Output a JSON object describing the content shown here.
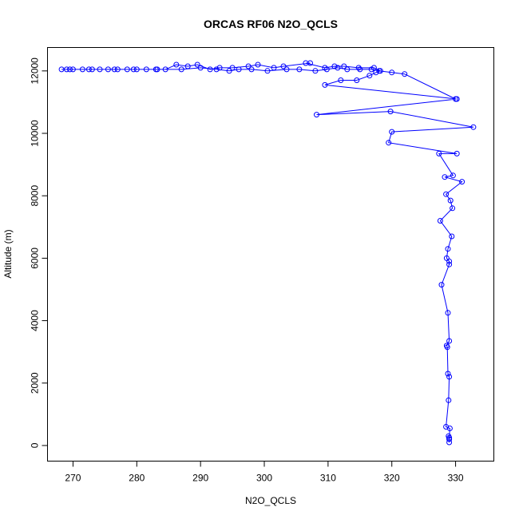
{
  "chart_data": {
    "type": "scatter",
    "title": "ORCAS RF06 N2O_QCLS",
    "xlabel": "N2O_QCLS",
    "ylabel": "Altitude (m)",
    "xlim": [
      266,
      336
    ],
    "ylim": [
      -500,
      12750
    ],
    "xticks": [
      270,
      280,
      290,
      300,
      310,
      320,
      330
    ],
    "yticks": [
      0,
      2000,
      4000,
      6000,
      8000,
      10000,
      12000
    ],
    "grid": false,
    "legend": "none",
    "marker": "open-circle",
    "connected": true,
    "series": [
      {
        "color": "#0000ff",
        "points": [
          [
            329.0,
            100
          ],
          [
            329.0,
            200
          ],
          [
            328.9,
            300
          ],
          [
            329.0,
            250
          ],
          [
            329.1,
            550
          ],
          [
            328.5,
            600
          ],
          [
            328.9,
            1450
          ],
          [
            329.0,
            2200
          ],
          [
            328.8,
            2300
          ],
          [
            328.7,
            3150
          ],
          [
            328.6,
            3200
          ],
          [
            329.0,
            3350
          ],
          [
            328.8,
            4250
          ],
          [
            327.8,
            5150
          ],
          [
            329.0,
            5800
          ],
          [
            329.0,
            5900
          ],
          [
            328.6,
            6000
          ],
          [
            328.8,
            6300
          ],
          [
            329.4,
            6700
          ],
          [
            327.6,
            7200
          ],
          [
            329.5,
            7600
          ],
          [
            329.2,
            7850
          ],
          [
            328.5,
            8050
          ],
          [
            331.0,
            8450
          ],
          [
            328.3,
            8600
          ],
          [
            329.6,
            8650
          ],
          [
            327.4,
            9350
          ],
          [
            330.2,
            9350
          ],
          [
            319.5,
            9700
          ],
          [
            320.0,
            10050
          ],
          [
            332.8,
            10200
          ],
          [
            319.8,
            10700
          ],
          [
            308.2,
            10600
          ],
          [
            330.2,
            11100
          ],
          [
            309.5,
            11550
          ],
          [
            312.0,
            11700
          ],
          [
            314.5,
            11700
          ],
          [
            316.5,
            11850
          ],
          [
            317.5,
            11950
          ],
          [
            318.2,
            12000
          ],
          [
            317.2,
            12100
          ],
          [
            314.8,
            12100
          ],
          [
            312.5,
            12150
          ],
          [
            311.0,
            12150
          ],
          [
            309.5,
            12100
          ],
          [
            306.5,
            12250
          ],
          [
            307.2,
            12250
          ],
          [
            303.0,
            12150
          ],
          [
            301.5,
            12100
          ],
          [
            299.0,
            12200
          ],
          [
            297.5,
            12150
          ],
          [
            295.0,
            12100
          ],
          [
            293.0,
            12100
          ],
          [
            291.5,
            12050
          ],
          [
            289.5,
            12200
          ],
          [
            288.0,
            12150
          ],
          [
            286.2,
            12200
          ],
          [
            284.5,
            12050
          ],
          [
            283.2,
            12050
          ],
          [
            281.5,
            12050
          ],
          [
            280.0,
            12050
          ],
          [
            278.5,
            12050
          ],
          [
            277.0,
            12050
          ],
          [
            275.5,
            12050
          ],
          [
            274.2,
            12050
          ],
          [
            272.5,
            12050
          ],
          [
            271.5,
            12050
          ],
          [
            269.5,
            12050
          ],
          [
            269.0,
            12050
          ],
          [
            268.2,
            12050
          ],
          [
            270.0,
            12050
          ],
          [
            273.0,
            12050
          ],
          [
            276.5,
            12050
          ],
          [
            279.5,
            12050
          ],
          [
            283.0,
            12050
          ],
          [
            287.0,
            12050
          ],
          [
            290.0,
            12100
          ],
          [
            292.5,
            12050
          ],
          [
            294.5,
            12000
          ],
          [
            296.0,
            12050
          ],
          [
            298.0,
            12050
          ],
          [
            300.5,
            12000
          ],
          [
            303.5,
            12050
          ],
          [
            305.5,
            12050
          ],
          [
            308.0,
            12000
          ],
          [
            309.8,
            12050
          ],
          [
            311.5,
            12100
          ],
          [
            313.0,
            12050
          ],
          [
            315.0,
            12050
          ],
          [
            316.8,
            12050
          ],
          [
            318.0,
            12000
          ],
          [
            320.0,
            11950
          ],
          [
            322.0,
            11900
          ],
          [
            330.0,
            11100
          ]
        ]
      }
    ]
  }
}
